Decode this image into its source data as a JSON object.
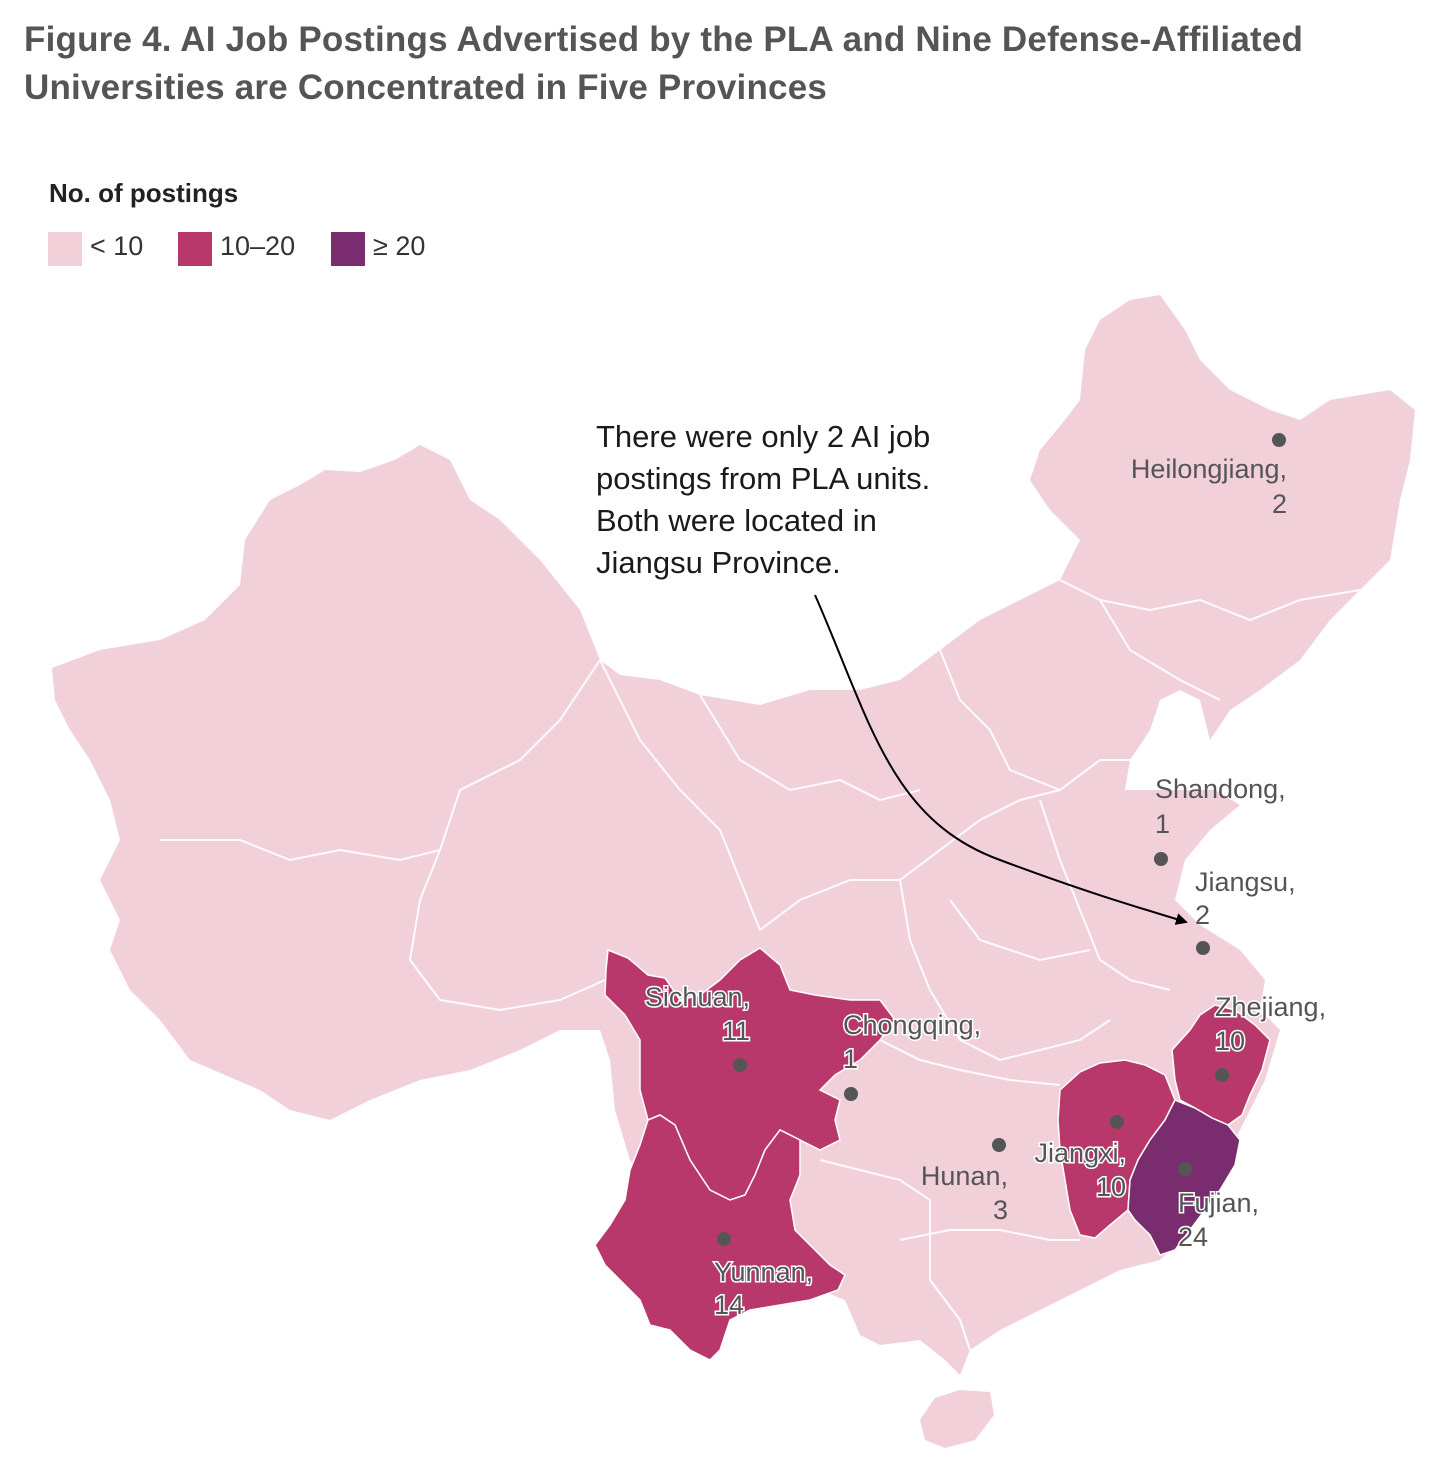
{
  "title": {
    "line1": "Figure 4. AI Job Postings Advertised by the PLA and Nine Defense-Affiliated",
    "line2": "Universities are Concentrated in Five Provinces"
  },
  "legend": {
    "title": "No. of postings",
    "items": [
      {
        "label": "< 10",
        "color": "#f1d0da"
      },
      {
        "label": "10–20",
        "color": "#b8386c"
      },
      {
        "label": "≥ 20",
        "color": "#7a2d6e"
      }
    ]
  },
  "colors": {
    "low": "#f1d0da",
    "mid": "#b8386c",
    "high": "#7a2d6e",
    "border": "#ffffff",
    "marker": "#555555"
  },
  "provinces": {
    "heilongjiang": {
      "name": "Heilongjiang,",
      "count": "2",
      "postings": 2
    },
    "shandong": {
      "name": "Shandong,",
      "count": "1",
      "postings": 1
    },
    "jiangsu": {
      "name": "Jiangsu,",
      "count": "2",
      "postings": 2
    },
    "zhejiang": {
      "name": "Zhejiang,",
      "count": "10",
      "postings": 10
    },
    "sichuan": {
      "name": "Sichuan,",
      "count": "11",
      "postings": 11
    },
    "chongqing": {
      "name": "Chongqing,",
      "count": "1",
      "postings": 1
    },
    "hunan": {
      "name": "Hunan,",
      "count": "3",
      "postings": 3
    },
    "jiangxi": {
      "name": "Jiangxi,",
      "count": "10",
      "postings": 10
    },
    "fujian": {
      "name": "Fujian,",
      "count": "24",
      "postings": 24
    },
    "yunnan": {
      "name": "Yunnan,",
      "count": "14",
      "postings": 14
    }
  },
  "annotation": {
    "line1": "There were only 2 AI job",
    "line2": "postings from PLA units.",
    "line3": "Both were located in",
    "line4": "Jiangsu Province."
  }
}
